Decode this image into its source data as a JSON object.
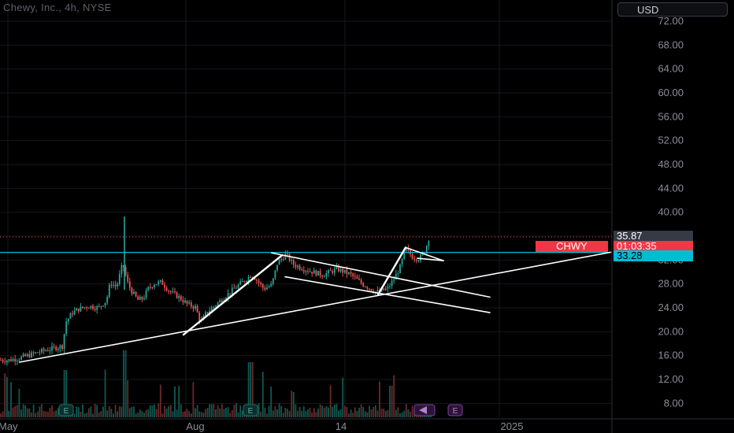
{
  "header": {
    "title": "Chewy, Inc., 4h, NYSE"
  },
  "currency_button": {
    "label": "USD"
  },
  "price_labels": {
    "ticker": "CHWY",
    "last_price": "35.87",
    "countdown": "01:03:35",
    "level_price": "33.28",
    "ticker_color": "#f23645",
    "level_color": "#00bcd4"
  },
  "chart_data": {
    "type": "candlestick",
    "title": "Chewy, Inc., 4h, NYSE",
    "currency": "USD",
    "y_ticks": [
      "72.00",
      "68.00",
      "64.00",
      "60.00",
      "56.00",
      "52.00",
      "48.00",
      "44.00",
      "40.00",
      "36.00",
      "32.00",
      "28.00",
      "24.00",
      "20.00",
      "16.00",
      "12.00",
      "8.00"
    ],
    "ylim": [
      6,
      75
    ],
    "x_ticks": [
      "May",
      "Aug",
      "14",
      "2025"
    ],
    "last_price": 35.87,
    "horizontal_level": 33.28,
    "grid": true,
    "up_color": "#26a69a",
    "down_color": "#ef5350",
    "earnings_markers": [
      "E",
      "E",
      "E"
    ],
    "price_path": [
      {
        "x": 0,
        "p": 15.3
      },
      {
        "x": 10,
        "p": 15.2
      },
      {
        "x": 25,
        "p": 15.6
      },
      {
        "x": 40,
        "p": 16.2
      },
      {
        "x": 55,
        "p": 16.8
      },
      {
        "x": 70,
        "p": 17.3
      },
      {
        "x": 80,
        "p": 17.6
      },
      {
        "x": 83,
        "p": 21.5
      },
      {
        "x": 92,
        "p": 23.2
      },
      {
        "x": 100,
        "p": 23.8
      },
      {
        "x": 112,
        "p": 24.3
      },
      {
        "x": 125,
        "p": 24.0
      },
      {
        "x": 135,
        "p": 25.2
      },
      {
        "x": 140,
        "p": 28.2
      },
      {
        "x": 148,
        "p": 27.5
      },
      {
        "x": 152,
        "p": 29.5
      },
      {
        "x": 156,
        "p": 31.5
      },
      {
        "x": 158,
        "p": 30.2
      },
      {
        "x": 163,
        "p": 27.8
      },
      {
        "x": 168,
        "p": 26.6
      },
      {
        "x": 175,
        "p": 25.3
      },
      {
        "x": 182,
        "p": 25.6
      },
      {
        "x": 188,
        "p": 27.2
      },
      {
        "x": 195,
        "p": 28.0
      },
      {
        "x": 205,
        "p": 28.3
      },
      {
        "x": 215,
        "p": 26.8
      },
      {
        "x": 228,
        "p": 25.7
      },
      {
        "x": 238,
        "p": 24.6
      },
      {
        "x": 248,
        "p": 24.1
      },
      {
        "x": 255,
        "p": 21.5
      },
      {
        "x": 262,
        "p": 23.2
      },
      {
        "x": 280,
        "p": 25.2
      },
      {
        "x": 300,
        "p": 27.5
      },
      {
        "x": 320,
        "p": 29.6
      },
      {
        "x": 335,
        "p": 27.2
      },
      {
        "x": 345,
        "p": 27.8
      },
      {
        "x": 352,
        "p": 31.4
      },
      {
        "x": 363,
        "p": 33.0
      },
      {
        "x": 372,
        "p": 31.3
      },
      {
        "x": 390,
        "p": 30.3
      },
      {
        "x": 410,
        "p": 29.5
      },
      {
        "x": 428,
        "p": 30.5
      },
      {
        "x": 445,
        "p": 29.6
      },
      {
        "x": 460,
        "p": 28.0
      },
      {
        "x": 478,
        "p": 26.6
      },
      {
        "x": 492,
        "p": 27.2
      },
      {
        "x": 500,
        "p": 28.8
      },
      {
        "x": 508,
        "p": 30.8
      },
      {
        "x": 515,
        "p": 33.9
      },
      {
        "x": 524,
        "p": 32.5
      },
      {
        "x": 532,
        "p": 32.2
      },
      {
        "x": 540,
        "p": 33.6
      },
      {
        "x": 545,
        "p": 35.9
      }
    ],
    "spike": {
      "x": 158,
      "high": 39.3,
      "low": 27.0
    },
    "annotations": [
      {
        "label": "long support",
        "from": {
          "x": 25,
          "p": 14.9
        },
        "to": {
          "x": 775,
          "p": 33.3
        }
      },
      {
        "label": "flagpole 1",
        "from": {
          "x": 233,
          "p": 19.5
        },
        "to": {
          "x": 358,
          "p": 32.8
        }
      },
      {
        "label": "channel upper",
        "from": {
          "x": 345,
          "p": 33.2
        },
        "to": {
          "x": 622,
          "p": 25.8
        }
      },
      {
        "label": "channel lower",
        "from": {
          "x": 362,
          "p": 29.2
        },
        "to": {
          "x": 622,
          "p": 23.2
        }
      },
      {
        "label": "flagpole 2",
        "from": {
          "x": 480,
          "p": 26.2
        },
        "to": {
          "x": 515,
          "p": 34.1
        }
      },
      {
        "label": "pennant upper",
        "from": {
          "x": 515,
          "p": 34.1
        },
        "to": {
          "x": 563,
          "p": 31.9
        }
      },
      {
        "label": "pennant lower",
        "from": {
          "x": 530,
          "p": 32.3
        },
        "to": {
          "x": 563,
          "p": 31.9
        }
      }
    ]
  }
}
